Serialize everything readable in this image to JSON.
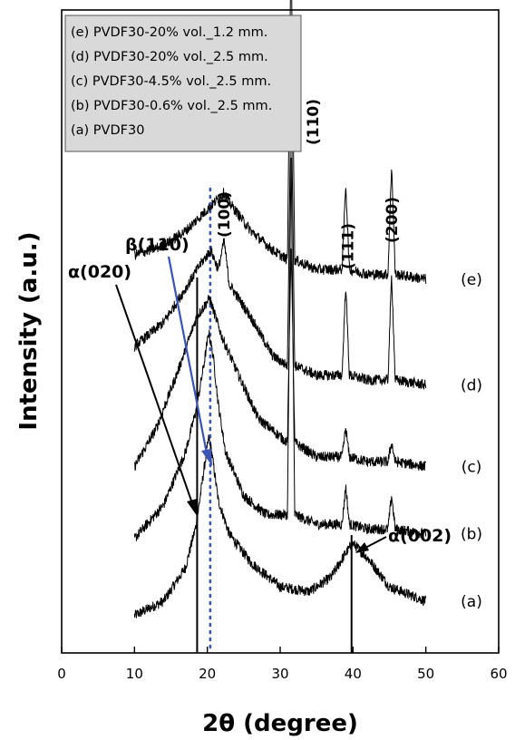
{
  "chart_data": {
    "type": "line",
    "title": "",
    "xlabel": "2θ (degree)",
    "ylabel": "Intensity (a.u.)",
    "xlim": [
      0,
      60
    ],
    "x_ticks": [
      "0",
      "10",
      "20",
      "30",
      "40",
      "50",
      "60"
    ],
    "grid": false,
    "legend_position": "top-left",
    "legend": [
      "(e) PVDF30-20% vol._1.2 mm.",
      "(d) PVDF30-20% vol._2.5 mm.",
      "(c) PVDF30-4.5% vol._2.5 mm.",
      "(b) PVDF30-0.6% vol._2.5 mm.",
      "(a) PVDF30"
    ],
    "series": [
      {
        "key": "a",
        "label": "(a)",
        "color": "#000000",
        "x": [
          10,
          14,
          17,
          18.5,
          19.5,
          20.2,
          20.6,
          21.5,
          23,
          26,
          30,
          34,
          37,
          39,
          40,
          42,
          45,
          50
        ],
        "y": [
          0.04,
          0.07,
          0.14,
          0.23,
          0.34,
          0.41,
          0.38,
          0.28,
          0.21,
          0.15,
          0.1,
          0.09,
          0.12,
          0.17,
          0.19,
          0.16,
          0.1,
          0.07
        ]
      },
      {
        "key": "b",
        "label": "(b)",
        "color": "#000000",
        "x": [
          10,
          14,
          17,
          18.5,
          19.5,
          20.2,
          20.8,
          21.5,
          22.5,
          25,
          28,
          31,
          31.5,
          32,
          35,
          38.5,
          39,
          39.5,
          42,
          44.8,
          45.3,
          45.8,
          50
        ],
        "y": [
          0.2,
          0.27,
          0.38,
          0.47,
          0.56,
          0.63,
          0.58,
          0.48,
          0.38,
          0.29,
          0.25,
          0.25,
          1.01,
          0.25,
          0.23,
          0.23,
          0.31,
          0.23,
          0.22,
          0.22,
          0.29,
          0.22,
          0.21
        ]
      },
      {
        "key": "c",
        "label": "(c)",
        "color": "#000000",
        "x": [
          10,
          13,
          16,
          18.5,
          20.3,
          22,
          24,
          27,
          31,
          31.5,
          32,
          35,
          38.5,
          39,
          39.5,
          42,
          44.8,
          45.3,
          45.8,
          50
        ],
        "y": [
          0.35,
          0.43,
          0.55,
          0.66,
          0.7,
          0.62,
          0.55,
          0.45,
          0.4,
          0.82,
          0.4,
          0.37,
          0.37,
          0.43,
          0.37,
          0.36,
          0.36,
          0.4,
          0.36,
          0.35
        ]
      },
      {
        "key": "d",
        "label": "(d)",
        "color": "#000000",
        "x": [
          10,
          14,
          17,
          19,
          20.5,
          21.5,
          22.3,
          23,
          26,
          29,
          31,
          31.5,
          32,
          35,
          38.5,
          39,
          39.5,
          42,
          44.8,
          45.3,
          45.8,
          50
        ],
        "y": [
          0.6,
          0.65,
          0.72,
          0.77,
          0.8,
          0.76,
          0.82,
          0.73,
          0.66,
          0.58,
          0.56,
          1.15,
          0.56,
          0.54,
          0.54,
          0.73,
          0.54,
          0.53,
          0.53,
          0.75,
          0.53,
          0.52
        ]
      },
      {
        "key": "e",
        "label": "(e)",
        "color": "#000000",
        "x": [
          10,
          14,
          17,
          19,
          21,
          22.3,
          23,
          26,
          29,
          31,
          31.5,
          32,
          35,
          38.5,
          39,
          39.5,
          42,
          44.8,
          45.3,
          45.8,
          50
        ],
        "y": [
          0.79,
          0.81,
          0.84,
          0.87,
          0.9,
          0.92,
          0.9,
          0.84,
          0.8,
          0.78,
          1.44,
          0.78,
          0.76,
          0.76,
          0.94,
          0.76,
          0.75,
          0.75,
          0.98,
          0.75,
          0.74
        ]
      }
    ],
    "peak_labels": [
      {
        "text": "(100)",
        "x": 22.3
      },
      {
        "text": "(110)",
        "x": 34.5
      },
      {
        "text": "(111)",
        "x": 39.3
      },
      {
        "text": "(200)",
        "x": 45.3
      }
    ],
    "annotations": [
      {
        "text": "β(110)",
        "color": "#3a55b4",
        "x": 20.4,
        "style": "dotted vertical line"
      },
      {
        "text": "α(020)",
        "color": "#000000",
        "x": 18.6,
        "style": "solid vertical line"
      },
      {
        "text": "α(002)",
        "color": "#000000",
        "x": 39.8,
        "style": "solid vertical line"
      }
    ]
  }
}
